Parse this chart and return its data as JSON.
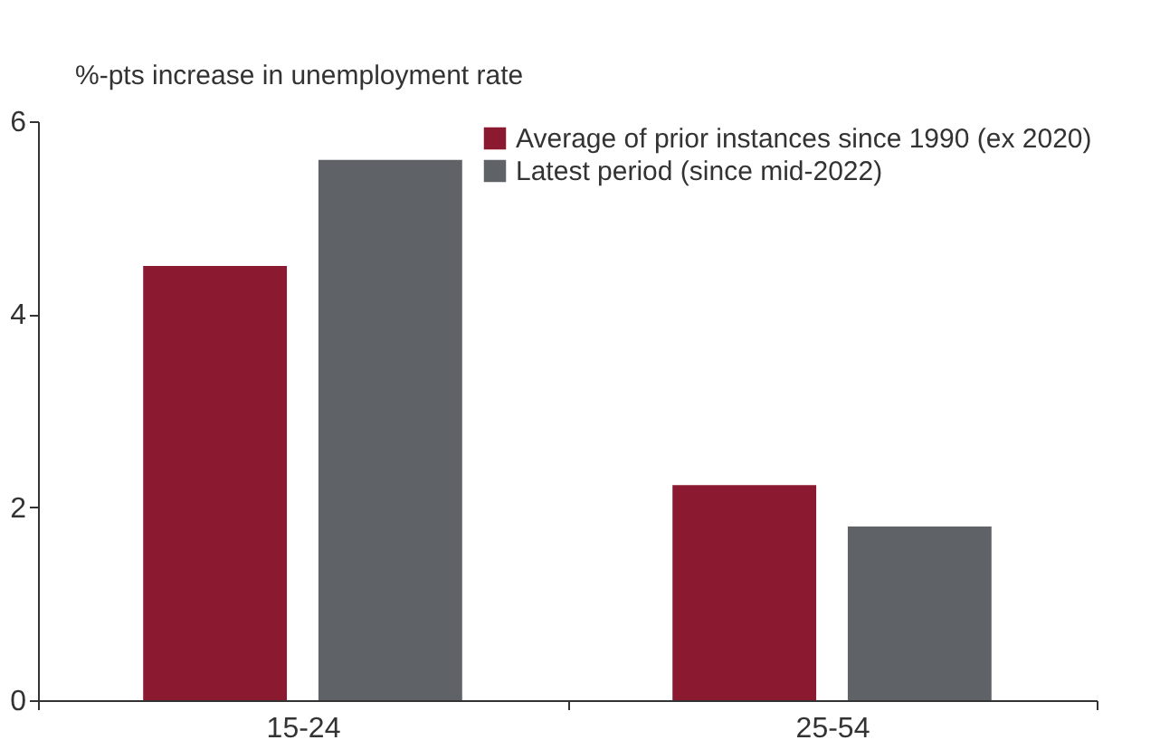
{
  "chart_data": {
    "type": "bar",
    "ylabel": "%-pts increase in unemployment rate",
    "categories": [
      "15-24",
      "25-54"
    ],
    "series": [
      {
        "name": "Average of prior instances since 1990 (ex 2020)",
        "color": "#8b1a31",
        "values": [
          4.5,
          2.23
        ]
      },
      {
        "name": "Latest period (since mid-2022)",
        "color": "#5f6266",
        "values": [
          5.6,
          1.8
        ]
      }
    ],
    "ylim": [
      0,
      6
    ],
    "yticks": [
      0,
      2,
      4,
      6
    ],
    "grid": false,
    "legend": "top right"
  }
}
